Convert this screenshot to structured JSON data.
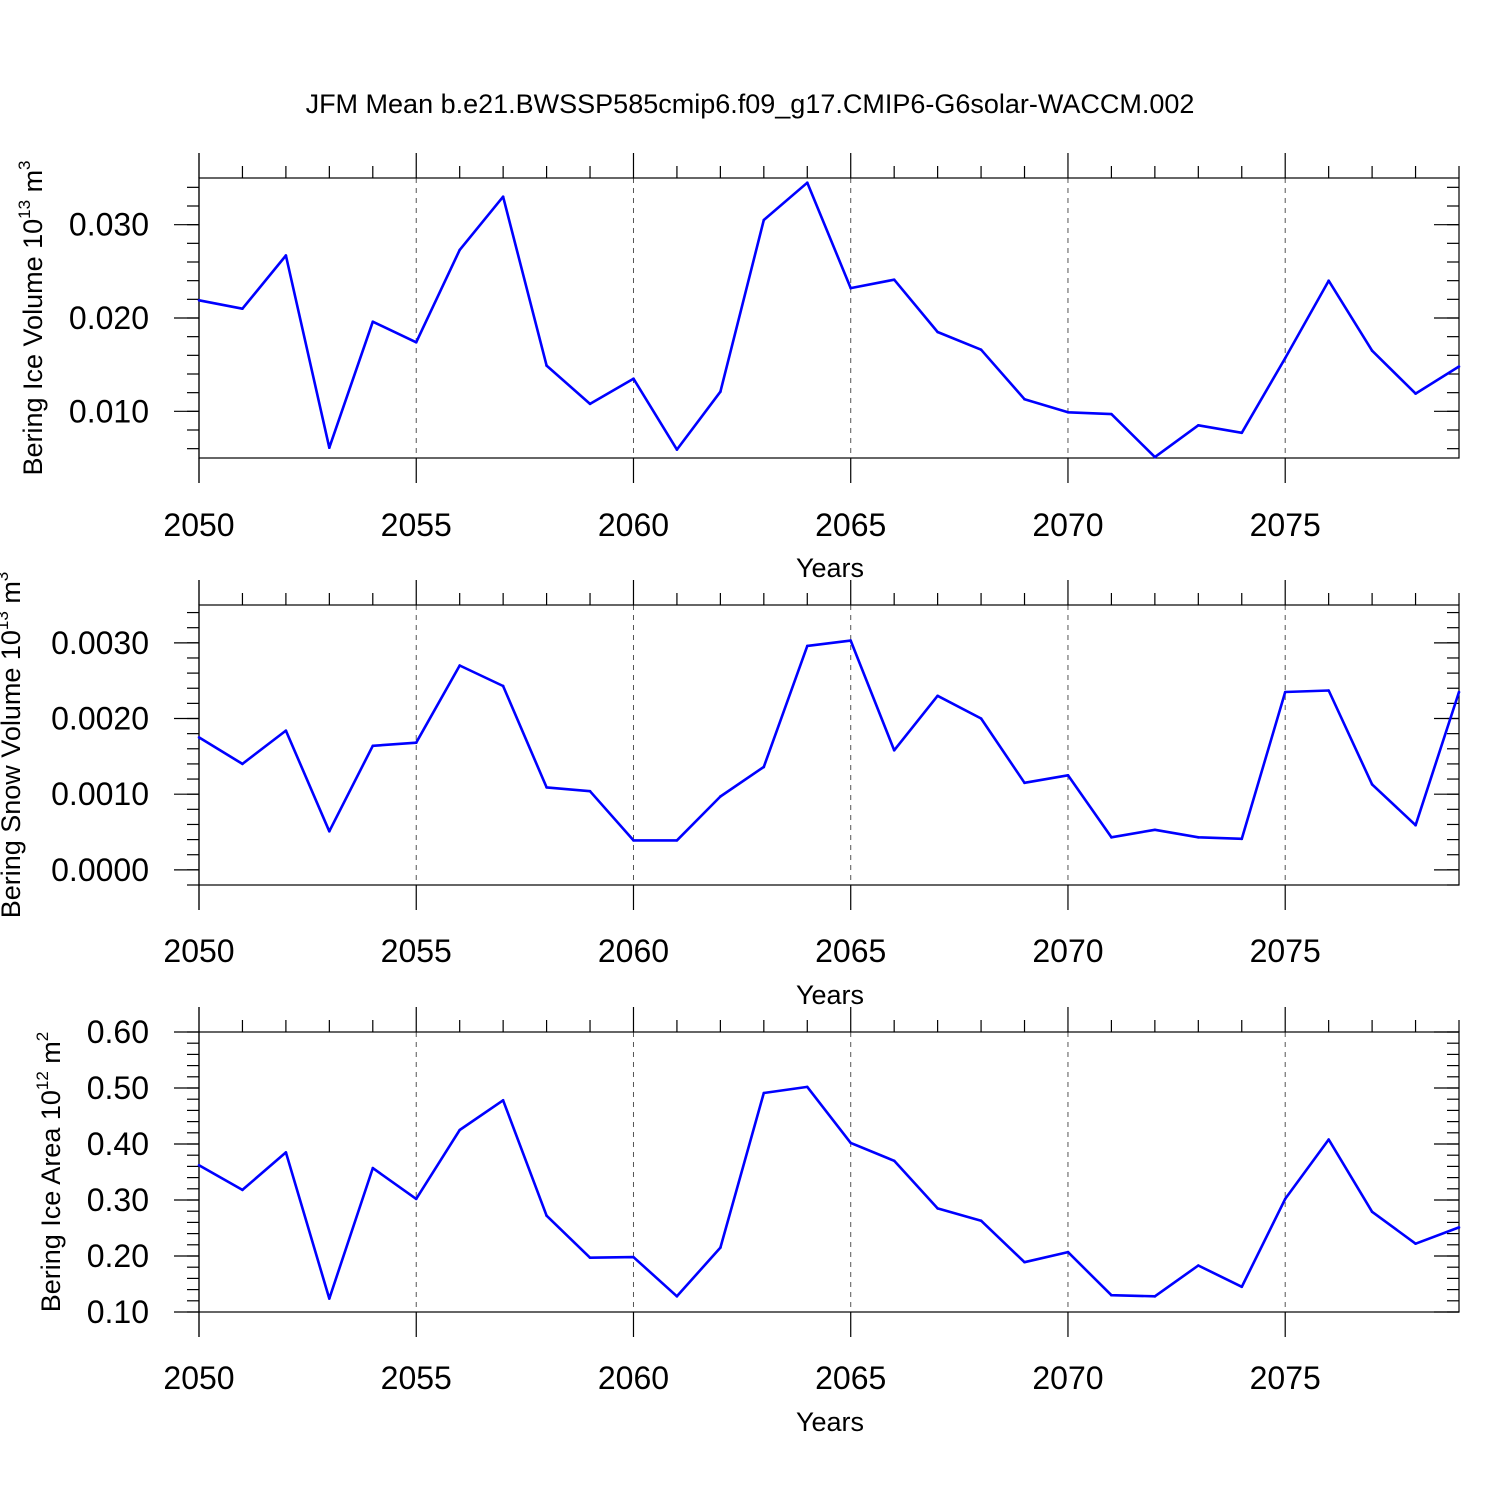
{
  "title": "JFM Mean b.e21.BWSSP585cmip6.f09_g17.CMIP6-G6solar-WACCM.002",
  "colors": {
    "line": "#0000ff",
    "grid": "#555555",
    "axis": "#000000"
  },
  "chart_data": [
    {
      "type": "line",
      "name": "ice-volume",
      "ylabel": "Bering Ice Volume 10",
      "ylabel_exp": "13",
      "ylabel_unit": " m",
      "ylabel_unit_exp": "3",
      "xlabel": "Years",
      "xlim": [
        2050,
        2079
      ],
      "ylim": [
        0.005,
        0.035
      ],
      "xticks": [
        2050,
        2055,
        2060,
        2065,
        2070,
        2075
      ],
      "xtick_labels": [
        "2050",
        "2055",
        "2060",
        "2065",
        "2070",
        "2075"
      ],
      "yticks": [
        0.01,
        0.02,
        0.03
      ],
      "ytick_labels": [
        "0.010",
        "0.020",
        "0.030"
      ],
      "yminor_step": 0.002,
      "grid": "x-dashed",
      "x": [
        2050,
        2051,
        2052,
        2053,
        2054,
        2055,
        2056,
        2057,
        2058,
        2059,
        2060,
        2061,
        2062,
        2063,
        2064,
        2065,
        2066,
        2067,
        2068,
        2069,
        2070,
        2071,
        2072,
        2073,
        2074,
        2075,
        2076,
        2077,
        2078,
        2079
      ],
      "values": [
        0.0219,
        0.021,
        0.0267,
        0.0061,
        0.0196,
        0.0174,
        0.0273,
        0.033,
        0.0149,
        0.0108,
        0.0135,
        0.0059,
        0.0121,
        0.0305,
        0.0345,
        0.0232,
        0.0241,
        0.0185,
        0.0166,
        0.0113,
        0.0099,
        0.0097,
        0.0051,
        0.0085,
        0.0077,
        0.0157,
        0.024,
        0.0165,
        0.0119,
        0.0148
      ]
    },
    {
      "type": "line",
      "name": "snow-volume",
      "ylabel": "Bering Snow Volume 10",
      "ylabel_exp": "13",
      "ylabel_unit": " m",
      "ylabel_unit_exp": "3",
      "xlabel": "Years",
      "xlim": [
        2050,
        2079
      ],
      "ylim": [
        -0.0002,
        0.0035
      ],
      "xticks": [
        2050,
        2055,
        2060,
        2065,
        2070,
        2075
      ],
      "xtick_labels": [
        "2050",
        "2055",
        "2060",
        "2065",
        "2070",
        "2075"
      ],
      "yticks": [
        0.0,
        0.001,
        0.002,
        0.003
      ],
      "ytick_labels": [
        "0.0000",
        "0.0010",
        "0.0020",
        "0.0030"
      ],
      "yminor_step": 0.0002,
      "grid": "x-dashed",
      "x": [
        2050,
        2051,
        2052,
        2053,
        2054,
        2055,
        2056,
        2057,
        2058,
        2059,
        2060,
        2061,
        2062,
        2063,
        2064,
        2065,
        2066,
        2067,
        2068,
        2069,
        2070,
        2071,
        2072,
        2073,
        2074,
        2075,
        2076,
        2077,
        2078,
        2079
      ],
      "values": [
        0.00175,
        0.0014,
        0.00184,
        0.00051,
        0.00164,
        0.00168,
        0.0027,
        0.00243,
        0.00109,
        0.00104,
        0.00039,
        0.00039,
        0.00097,
        0.00136,
        0.00296,
        0.00303,
        0.00158,
        0.0023,
        0.002,
        0.00115,
        0.00125,
        0.00043,
        0.00053,
        0.00043,
        0.00041,
        0.00235,
        0.00237,
        0.00113,
        0.00059,
        0.00235
      ]
    },
    {
      "type": "line",
      "name": "ice-area",
      "ylabel": "Bering Ice Area 10",
      "ylabel_exp": "12",
      "ylabel_unit": " m",
      "ylabel_unit_exp": "2",
      "xlabel": "Years",
      "xlim": [
        2050,
        2079
      ],
      "ylim": [
        0.1,
        0.6
      ],
      "xticks": [
        2050,
        2055,
        2060,
        2065,
        2070,
        2075
      ],
      "xtick_labels": [
        "2050",
        "2055",
        "2060",
        "2065",
        "2070",
        "2075"
      ],
      "yticks": [
        0.1,
        0.2,
        0.3,
        0.4,
        0.5,
        0.6
      ],
      "ytick_labels": [
        "0.10",
        "0.20",
        "0.30",
        "0.40",
        "0.50",
        "0.60"
      ],
      "yminor_step": 0.02,
      "grid": "x-dashed",
      "x": [
        2050,
        2051,
        2052,
        2053,
        2054,
        2055,
        2056,
        2057,
        2058,
        2059,
        2060,
        2061,
        2062,
        2063,
        2064,
        2065,
        2066,
        2067,
        2068,
        2069,
        2070,
        2071,
        2072,
        2073,
        2074,
        2075,
        2076,
        2077,
        2078,
        2079
      ],
      "values": [
        0.362,
        0.318,
        0.385,
        0.124,
        0.357,
        0.302,
        0.425,
        0.478,
        0.272,
        0.197,
        0.198,
        0.128,
        0.215,
        0.491,
        0.502,
        0.402,
        0.37,
        0.285,
        0.263,
        0.189,
        0.207,
        0.13,
        0.128,
        0.183,
        0.145,
        0.302,
        0.408,
        0.279,
        0.222,
        0.251
      ]
    }
  ]
}
